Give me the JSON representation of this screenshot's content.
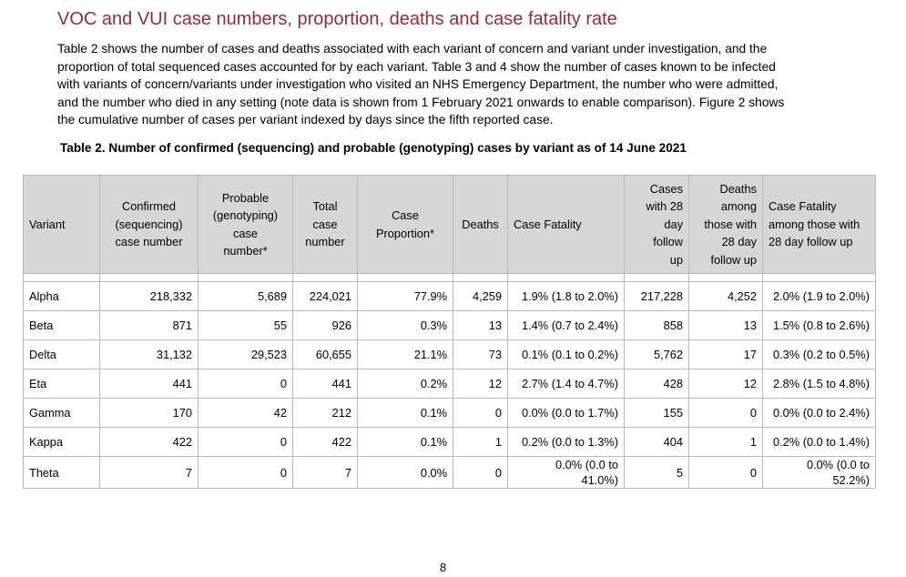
{
  "section": {
    "title": "VOC and VUI case numbers, proportion, deaths and case fatality rate",
    "lines": [
      "Table 2 shows the number of cases and deaths associated with each variant of concern and variant under investigation, and the",
      "proportion of total sequenced cases accounted for by each variant. Table 3 and 4 show the number of cases known to be infected",
      "with variants of concern/variants under investigation who visited an NHS Emergency Department, the number who were admitted,",
      "and the number who died in any setting (note data is shown from 1 February 2021 onwards to enable comparison). Figure 2 shows",
      "the cumulative number of cases per variant indexed by days since the fifth reported case."
    ]
  },
  "table": {
    "caption": "Table 2. Number of confirmed (sequencing) and probable (genotyping) cases by variant as of 14 June 2021",
    "headers": [
      [
        "Variant"
      ],
      [
        "Confirmed",
        "(sequencing)",
        "case number"
      ],
      [
        "Probable",
        "(genotyping)",
        "case",
        "number*"
      ],
      [
        "Total",
        "case",
        "number"
      ],
      [
        "Case",
        "Proportion*"
      ],
      [
        "Deaths"
      ],
      [
        "Case Fatality"
      ],
      [
        "Cases",
        "with 28",
        "day",
        "follow",
        "up"
      ],
      [
        "Deaths",
        "among",
        "those with",
        "28 day",
        "follow up"
      ],
      [
        "Case Fatality",
        "among those with",
        "28 day follow up"
      ]
    ],
    "rows": [
      {
        "variant": "Alpha",
        "confirmed": "218,332",
        "probable": "5,689",
        "total": "224,021",
        "proportion": "77.9%",
        "deaths": "4,259",
        "cfr": [
          "1.9% (1.8 to 2.0%)"
        ],
        "cases28": "217,228",
        "deaths28": "4,252",
        "cfr28": [
          "2.0% (1.9 to 2.0%)"
        ]
      },
      {
        "variant": "Beta",
        "confirmed": "871",
        "probable": "55",
        "total": "926",
        "proportion": "0.3%",
        "deaths": "13",
        "cfr": [
          "1.4% (0.7 to 2.4%)"
        ],
        "cases28": "858",
        "deaths28": "13",
        "cfr28": [
          "1.5% (0.8 to 2.6%)"
        ]
      },
      {
        "variant": "Delta",
        "confirmed": "31,132",
        "probable": "29,523",
        "total": "60,655",
        "proportion": "21.1%",
        "deaths": "73",
        "cfr": [
          "0.1% (0.1 to 0.2%)"
        ],
        "cases28": "5,762",
        "deaths28": "17",
        "cfr28": [
          "0.3% (0.2 to 0.5%)"
        ]
      },
      {
        "variant": "Eta",
        "confirmed": "441",
        "probable": "0",
        "total": "441",
        "proportion": "0.2%",
        "deaths": "12",
        "cfr": [
          "2.7% (1.4 to 4.7%)"
        ],
        "cases28": "428",
        "deaths28": "12",
        "cfr28": [
          "2.8% (1.5 to 4.8%)"
        ]
      },
      {
        "variant": "Gamma",
        "confirmed": "170",
        "probable": "42",
        "total": "212",
        "proportion": "0.1%",
        "deaths": "0",
        "cfr": [
          "0.0% (0.0 to 1.7%)"
        ],
        "cases28": "155",
        "deaths28": "0",
        "cfr28": [
          "0.0% (0.0 to 2.4%)"
        ]
      },
      {
        "variant": "Kappa",
        "confirmed": "422",
        "probable": "0",
        "total": "422",
        "proportion": "0.1%",
        "deaths": "1",
        "cfr": [
          "0.2% (0.0 to 1.3%)"
        ],
        "cases28": "404",
        "deaths28": "1",
        "cfr28": [
          "0.2% (0.0 to 1.4%)"
        ]
      },
      {
        "variant": "Theta",
        "confirmed": "7",
        "probable": "0",
        "total": "7",
        "proportion": "0.0%",
        "deaths": "0",
        "cfr": [
          "0.0% (0.0 to",
          "41.0%)"
        ],
        "cases28": "5",
        "deaths28": "0",
        "cfr28": [
          "0.0% (0.0 to",
          "52.2%)"
        ]
      }
    ]
  },
  "footer": {
    "page_number": "8"
  }
}
